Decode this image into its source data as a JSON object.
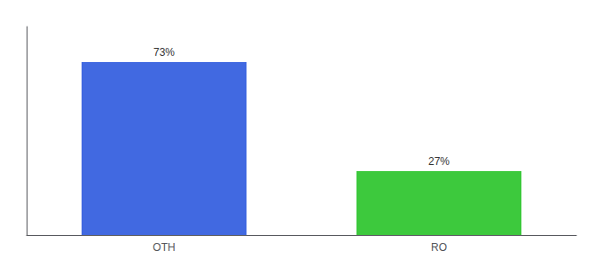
{
  "chart_data": {
    "type": "bar",
    "categories": [
      "OTH",
      "RO"
    ],
    "values": [
      73,
      27
    ],
    "value_labels": [
      "73%",
      "27%"
    ],
    "colors": [
      "#4169e1",
      "#3dc93d"
    ],
    "ylim": [
      0,
      88
    ],
    "data_labels": true,
    "tick_labels": "x",
    "grid": false
  }
}
